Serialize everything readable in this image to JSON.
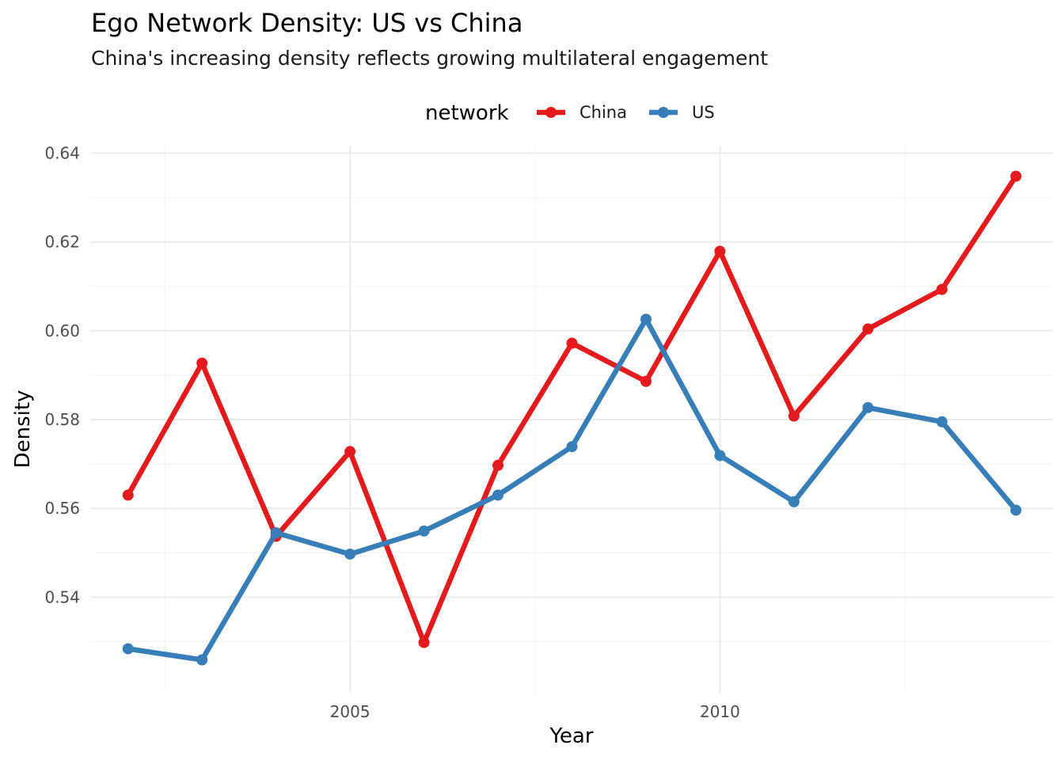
{
  "chart_data": {
    "type": "line",
    "title": "Ego Network Density: US vs China",
    "subtitle": "China's increasing density reflects growing multilateral engagement",
    "xlabel": "Year",
    "ylabel": "Density",
    "xlim": [
      2001.5,
      2014.5
    ],
    "ylim": [
      0.5185,
      0.6415
    ],
    "x_ticks": [
      2005,
      2010
    ],
    "x_tick_labels": [
      "2005",
      "2010"
    ],
    "y_ticks": [
      0.54,
      0.56,
      0.58,
      0.6,
      0.62,
      0.64
    ],
    "y_tick_labels": [
      "0.54",
      "0.56",
      "0.58",
      "0.60",
      "0.62",
      "0.64"
    ],
    "grid": true,
    "legend": {
      "title": "network",
      "position": "top"
    },
    "x": [
      2002,
      2003,
      2004,
      2005,
      2006,
      2007,
      2008,
      2009,
      2010,
      2011,
      2012,
      2013,
      2014
    ],
    "series": [
      {
        "name": "China",
        "color": "#e41a1c",
        "values": [
          0.563,
          0.5927,
          0.5537,
          0.5728,
          0.5298,
          0.5697,
          0.5972,
          0.5886,
          0.6179,
          0.5808,
          0.6004,
          0.6093,
          0.6348
        ]
      },
      {
        "name": "US",
        "color": "#377eb8",
        "values": [
          0.5284,
          0.5259,
          0.5545,
          0.5497,
          0.5549,
          0.563,
          0.5739,
          0.6026,
          0.5719,
          0.5615,
          0.5827,
          0.5795,
          0.5596
        ]
      }
    ]
  }
}
